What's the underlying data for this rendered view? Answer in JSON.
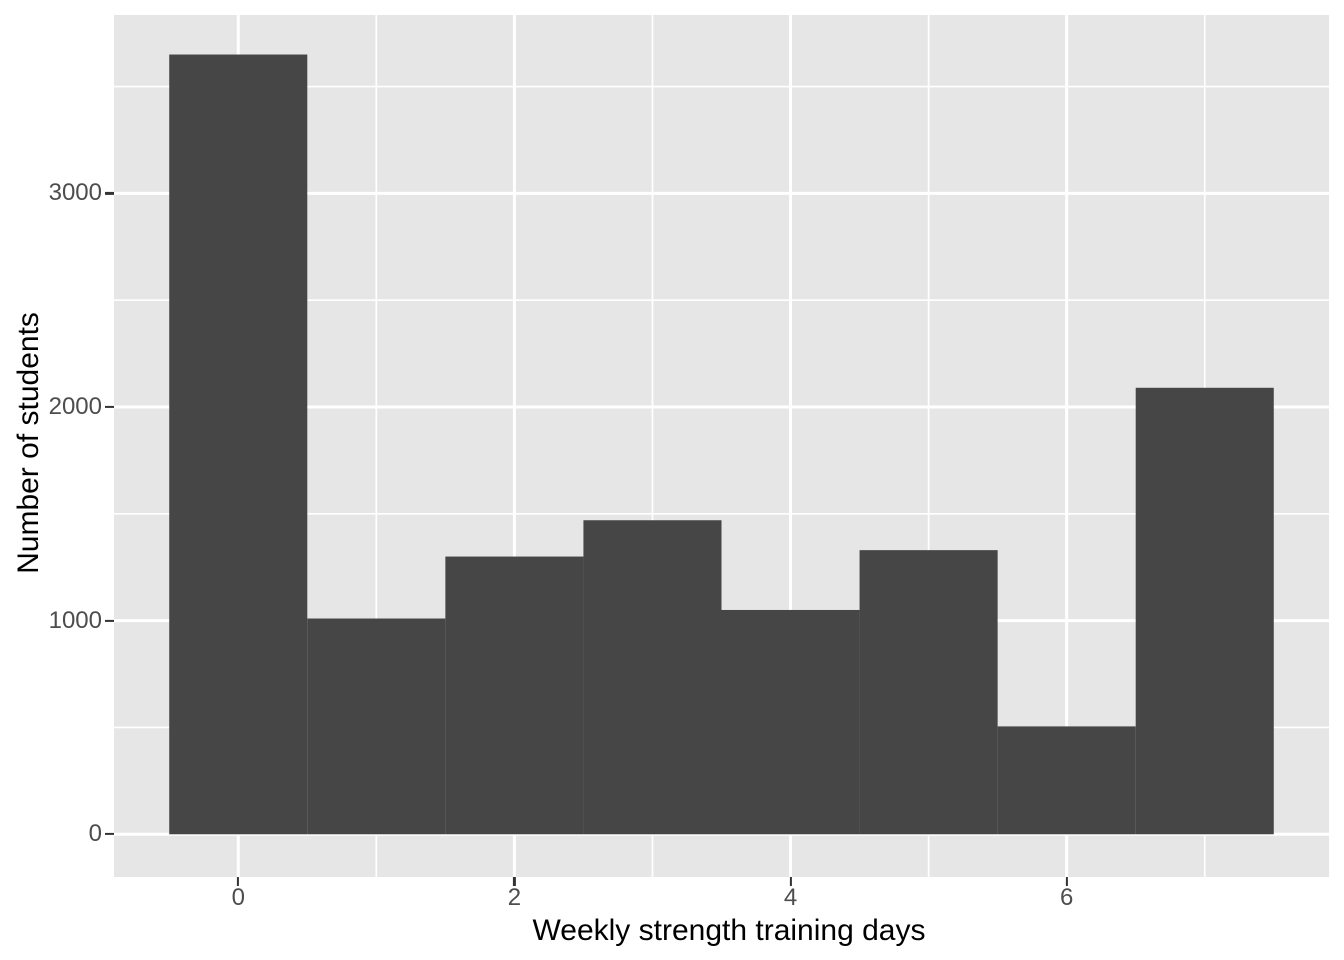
{
  "chart_data": {
    "type": "bar",
    "subtype": "histogram",
    "title": "",
    "xlabel": "Weekly strength training days",
    "ylabel": "Number of students",
    "categories": [
      0,
      1,
      2,
      3,
      4,
      5,
      6,
      7
    ],
    "values": [
      3650,
      1010,
      1300,
      1470,
      1050,
      1330,
      505,
      2090
    ],
    "bar_width": 1,
    "x_ticks": [
      0,
      2,
      4,
      6
    ],
    "y_ticks": [
      0,
      1000,
      2000,
      3000
    ],
    "x_minor_gridlines": [
      1,
      3,
      5,
      7
    ],
    "y_minor_gridlines": [
      500,
      1500,
      2500,
      3500
    ],
    "xlim": [
      -0.9,
      7.9
    ],
    "ylim": [
      -200,
      3835
    ],
    "grid": true,
    "legend_position": "none",
    "colors": {
      "bar_fill": "#464646",
      "panel_background": "#E6E6E6",
      "gridline": "#FFFFFF",
      "tick_label": "#4D4D4D",
      "axis_title": "#000000",
      "tick_mark": "#333333",
      "figure_background": "#FFFFFF"
    }
  }
}
